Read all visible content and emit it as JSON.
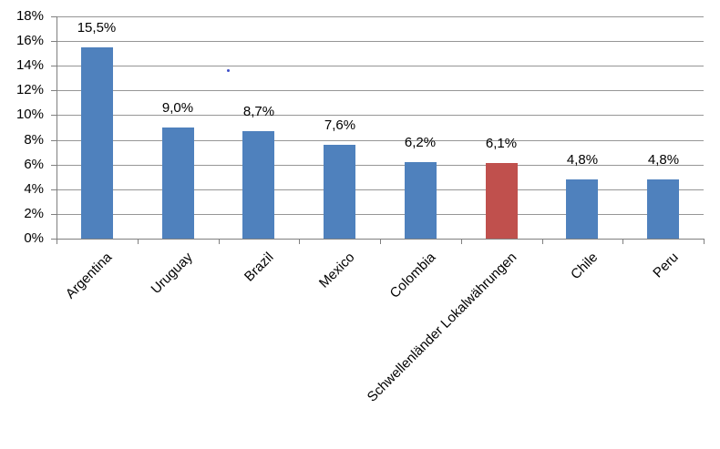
{
  "chart_data": {
    "type": "bar",
    "title": "",
    "xlabel": "",
    "ylabel": "",
    "categories": [
      "Argentina",
      "Uruguay",
      "Brazil",
      "Mexico",
      "Colombia",
      "Schwellenländer Lokalwährungen",
      "Chile",
      "Peru"
    ],
    "values": [
      15.5,
      9.0,
      8.7,
      7.6,
      6.2,
      6.1,
      4.8,
      4.8
    ],
    "data_labels": [
      "15,5%",
      "9,0%",
      "8,7%",
      "7,6%",
      "6,2%",
      "6,1%",
      "4,8%",
      "4,8%"
    ],
    "bar_colors": [
      "#4F81BD",
      "#4F81BD",
      "#4F81BD",
      "#4F81BD",
      "#4F81BD",
      "#C0504D",
      "#4F81BD",
      "#4F81BD"
    ],
    "highlight_index": 5,
    "ylim": [
      0,
      18
    ],
    "ytick_step": 2,
    "ytick_labels": [
      "0%",
      "2%",
      "4%",
      "6%",
      "8%",
      "10%",
      "12%",
      "14%",
      "16%",
      "18%"
    ],
    "grid": true,
    "legend": false,
    "x_label_rotation_deg": -45
  },
  "colors": {
    "bar_blue": "#4F81BD",
    "bar_red": "#C0504D",
    "gridline": "#969696",
    "axis": "#7f7f7f",
    "text": "#000000"
  }
}
